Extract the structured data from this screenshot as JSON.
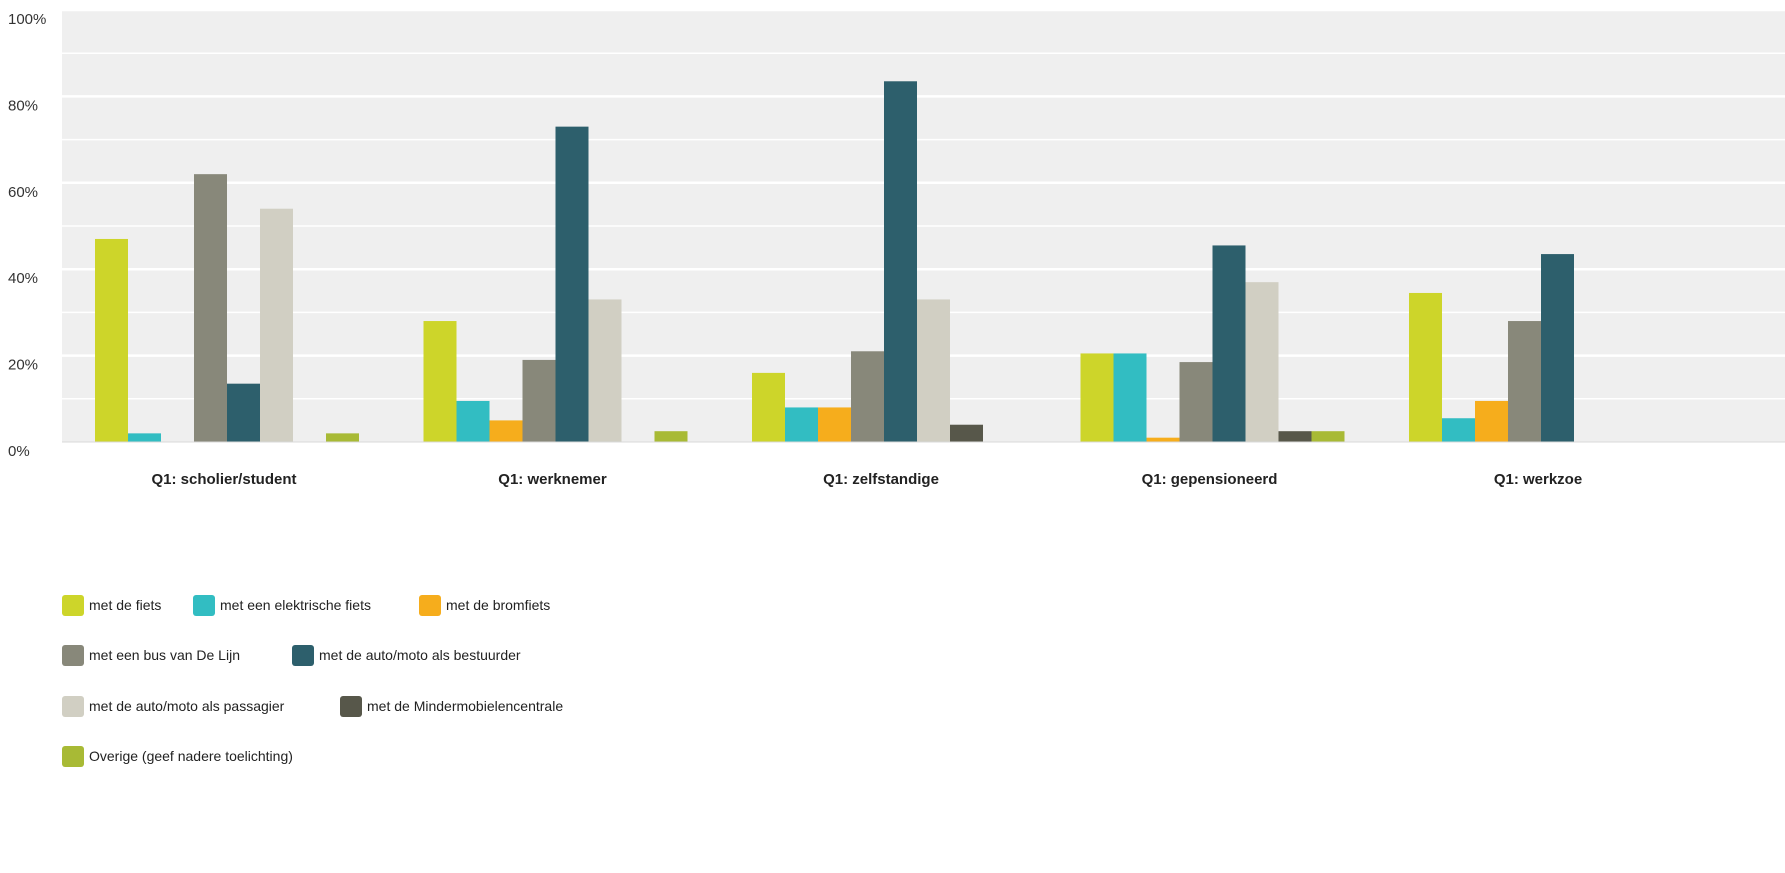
{
  "chart_data": {
    "type": "bar",
    "title": "",
    "xlabel": "",
    "ylabel": "",
    "ylim": [
      0,
      100
    ],
    "yticks": [
      "0%",
      "20%",
      "40%",
      "60%",
      "80%",
      "100%"
    ],
    "grid": true,
    "legend_position": "bottom-left",
    "categories": [
      "Q1: scholier/student",
      "Q1: werknemer",
      "Q1: zelfstandige",
      "Q1: gepensioneerd",
      "Q1: werkzoe"
    ],
    "series": [
      {
        "name": "met de fiets",
        "color": "#CDD52A",
        "values": [
          47,
          28,
          16,
          20.5,
          34.5
        ]
      },
      {
        "name": "met een elektrische fiets",
        "color": "#32BDC2",
        "values": [
          2,
          9.5,
          8,
          20.5,
          5.5
        ]
      },
      {
        "name": "met de bromfiets",
        "color": "#F6AD1C",
        "values": [
          0,
          5,
          8,
          1,
          9.5
        ]
      },
      {
        "name": "met een bus van De Lijn",
        "color": "#88887A",
        "values": [
          62,
          19,
          21,
          18.5,
          28
        ]
      },
      {
        "name": "met de auto/moto als bestuurder",
        "color": "#2D5F6C",
        "values": [
          13.5,
          73,
          83.5,
          45.5,
          43.5
        ]
      },
      {
        "name": "met de auto/moto als passagier",
        "color": "#D1CFC3",
        "values": [
          54,
          33,
          33,
          37,
          null
        ]
      },
      {
        "name": "met de Mindermobielencentrale",
        "color": "#57574A",
        "values": [
          0,
          0,
          4,
          2.5,
          null
        ]
      },
      {
        "name": "Overige (geef nadere toelichting)",
        "color": "#A8BA35",
        "values": [
          2,
          2.5,
          0,
          2.5,
          null
        ]
      }
    ]
  }
}
